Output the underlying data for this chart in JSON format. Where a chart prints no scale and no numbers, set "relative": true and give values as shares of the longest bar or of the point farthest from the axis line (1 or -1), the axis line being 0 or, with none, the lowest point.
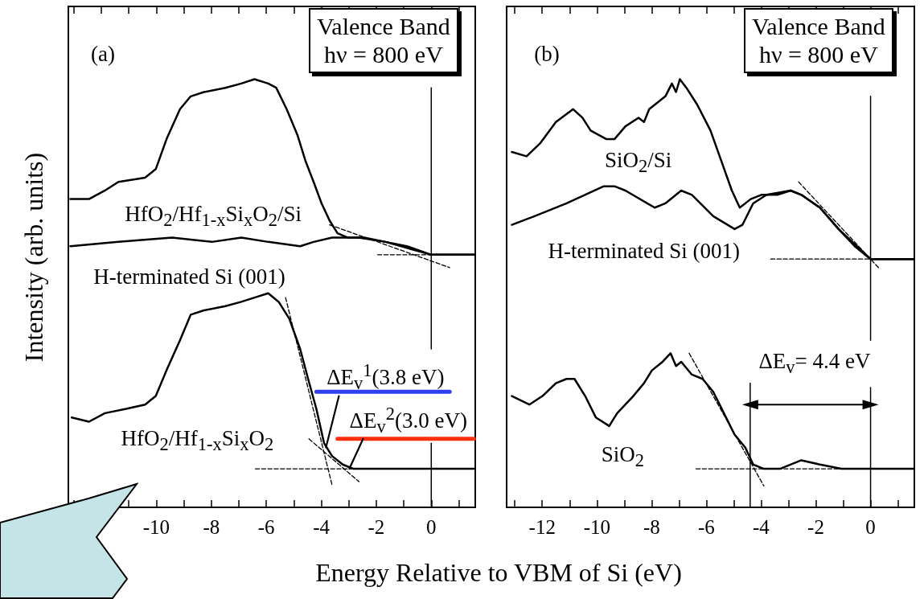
{
  "chart_data": [
    {
      "type": "line",
      "relative": true,
      "xlabel": "Energy Relative to VBM of Si (eV)",
      "ylabel": "Intensity (arb. units)",
      "xlim": [
        -13.2,
        1.6
      ],
      "xticks": [
        {
          "value": -13,
          "label": null
        },
        {
          "value": -12,
          "label": null
        },
        {
          "value": -11,
          "label": null
        },
        -10,
        {
          "value": -9,
          "label": null
        },
        -8,
        {
          "value": -7,
          "label": null
        },
        -6,
        {
          "value": -5,
          "label": null
        },
        -4,
        {
          "value": -3,
          "label": null
        },
        -2,
        {
          "value": -1,
          "label": null
        },
        0,
        {
          "value": 1,
          "label": null
        }
      ],
      "tick_labels": "x",
      "grid": false,
      "marker": "none",
      "line_style": "solid",
      "annotations": [
        "(a)",
        "Valence Band\nhν = 800 eV",
        {
          "text": "ΔE$_{v}$$^{1}$(3.8 eV)",
          "x": -3.8,
          "y": 0.14
        },
        {
          "text": "ΔE$_{v}$$^{2}$(3.0 eV)",
          "x": -3.0,
          "y": 0.09
        }
      ],
      "series": [
        {
          "name": "HfO$_{2}$/Hf$_{1-x}$Si$_{x}$O$_{2}$/Si",
          "color": "#000000",
          "x": [
            -13.13,
            -12.45,
            -11.87,
            -11.38,
            -10.41,
            -10.02,
            -9.63,
            -9.14,
            -8.75,
            -8.27,
            -7.49,
            -6.91,
            -6.43,
            -5.93,
            -5.64,
            -5.26,
            -4.87,
            -4.58,
            -4.28,
            -3.99,
            -3.7,
            -3.41,
            -3.03,
            -2.44,
            -1.66,
            -0.89,
            0,
            0.67,
            1.55
          ],
          "values": [
            0.72,
            0.72,
            0.74,
            0.76,
            0.77,
            0.79,
            0.86,
            0.93,
            0.96,
            0.97,
            0.98,
            0.99,
            1.0,
            0.99,
            0.98,
            0.93,
            0.87,
            0.81,
            0.76,
            0.71,
            0.67,
            0.64,
            0.63,
            0.63,
            0.62,
            0.61,
            0.59,
            0.59,
            0.59
          ]
        },
        {
          "name": "H-terminated Si (001)",
          "color": "#000000",
          "x": [
            -13.13,
            -11.38,
            -9.43,
            -7.98,
            -6.91,
            -5.93,
            -4.77,
            -4.28,
            -3.61,
            -2.64,
            -1.66,
            0,
            1.55
          ],
          "values": [
            0.61,
            0.62,
            0.63,
            0.62,
            0.63,
            0.62,
            0.61,
            0.62,
            0.63,
            0.63,
            0.62,
            0.59,
            0.59
          ]
        },
        {
          "name": "HfO$_{2}$/Hf$_{1-x}$Si$_{x}$O$_{2}$",
          "color": "#000000",
          "x": [
            -13.08,
            -12.45,
            -11.87,
            -11.1,
            -10.41,
            -10.02,
            -9.63,
            -9.14,
            -8.75,
            -8.27,
            -7.49,
            -6.91,
            -6.43,
            -5.93,
            -5.55,
            -5.16,
            -4.77,
            -4.48,
            -4.18,
            -3.9,
            -3.61,
            -3.22,
            -2.83,
            -1.66,
            0,
            1.55
          ],
          "values": [
            0.21,
            0.2,
            0.22,
            0.23,
            0.24,
            0.26,
            0.32,
            0.39,
            0.45,
            0.46,
            0.47,
            0.48,
            0.49,
            0.5,
            0.48,
            0.44,
            0.37,
            0.3,
            0.23,
            0.15,
            0.12,
            0.1,
            0.09,
            0.09,
            0.09,
            0.09
          ]
        },
        {
          "type": "line",
          "color": "#000000",
          "line_style": "dashed",
          "x": [
            -3.7,
            0.67
          ],
          "values": [
            0.66,
            0.56
          ]
        },
        {
          "type": "line",
          "color": "#000000",
          "line_style": "dashed",
          "x": [
            -1.95,
            0
          ],
          "values": [
            0.59,
            0.59
          ]
        },
        {
          "type": "line",
          "color": "#000000",
          "line_style": "dashed",
          "x": [
            -5.3,
            -3.6
          ],
          "values": [
            0.49,
            0.05
          ]
        },
        {
          "type": "line",
          "color": "#000000",
          "line_style": "dashed",
          "x": [
            -4.45,
            -2.63
          ],
          "values": [
            0.16,
            0.06
          ]
        },
        {
          "type": "line",
          "color": "#000000",
          "line_style": "dashed",
          "x": [
            -6.4,
            -0.4
          ],
          "values": [
            0.09,
            0.09
          ]
        },
        {
          "type": "line",
          "color": "#000000",
          "x": [
            0,
            0
          ],
          "values": [
            0.98,
            0.37
          ]
        },
        {
          "type": "line",
          "color": "#000000",
          "x": [
            0,
            0
          ],
          "values": [
            0.15,
            0
          ]
        },
        {
          "type": "line",
          "color": "#2f3ff2",
          "x": [
            -4.18,
            0.67
          ],
          "values": [
            0.27,
            0.27
          ]
        },
        {
          "type": "line",
          "color": "#ff3010",
          "x": [
            -3.41,
            1.55
          ],
          "values": [
            0.16,
            0.16
          ]
        },
        {
          "type": "line",
          "color": "#000000",
          "x": [
            -3.36,
            -3.83
          ],
          "values": [
            0.26,
            0.14
          ]
        },
        {
          "type": "line",
          "color": "#000000",
          "x": [
            -2.48,
            -2.98
          ],
          "values": [
            0.16,
            0.09
          ]
        }
      ]
    },
    {
      "type": "line",
      "relative": true,
      "xlim": [
        -13.3,
        1.6
      ],
      "xticks": [
        {
          "value": -13,
          "label": null
        },
        -12,
        {
          "value": -11,
          "label": null
        },
        -10,
        {
          "value": -9,
          "label": null
        },
        -8,
        {
          "value": -7,
          "label": null
        },
        -6,
        {
          "value": -5,
          "label": null
        },
        -4,
        {
          "value": -3,
          "label": null
        },
        -2,
        {
          "value": -1,
          "label": null
        },
        0,
        {
          "value": 1,
          "label": null
        }
      ],
      "tick_labels": "x",
      "grid": false,
      "marker": "none",
      "line_style": "solid",
      "annotations": [
        "(b)",
        "Valence Band\nhν = 800 eV",
        "ΔE$_{v}$= 4.4 eV"
      ],
      "series": [
        {
          "name": "SiO$_{2}$/Si",
          "color": "#000000",
          "x": [
            -13.11,
            -12.57,
            -12.08,
            -11.5,
            -10.87,
            -10.53,
            -10.23,
            -9.65,
            -9.36,
            -8.96,
            -8.48,
            -8.28,
            -8.09,
            -7.5,
            -7.26,
            -7.11,
            -6.97,
            -6.73,
            -6.33,
            -5.85,
            -5.46,
            -5.07,
            -4.78,
            -4.38,
            -3.99,
            -3.41,
            -2.92,
            -2.53,
            -1.85,
            -1.17,
            -0.58,
            0,
            0.58,
            1.56
          ],
          "values": [
            0.83,
            0.82,
            0.85,
            0.9,
            0.93,
            0.91,
            0.88,
            0.86,
            0.86,
            0.89,
            0.91,
            0.9,
            0.93,
            0.96,
            0.99,
            0.97,
            1.0,
            0.98,
            0.94,
            0.88,
            0.81,
            0.74,
            0.7,
            0.72,
            0.73,
            0.73,
            0.74,
            0.73,
            0.7,
            0.65,
            0.61,
            0.58,
            0.58,
            0.58
          ]
        },
        {
          "name": "H-terminated Si (001)",
          "color": "#000000",
          "x": [
            -13.11,
            -12.28,
            -11.11,
            -9.75,
            -9.36,
            -8.96,
            -7.89,
            -7.5,
            -6.92,
            -6.53,
            -5.75,
            -4.97,
            -4.68,
            -4.29,
            -3.8,
            -2.92,
            -2.53,
            -1.85,
            -1.17,
            0,
            1.56
          ],
          "values": [
            0.66,
            0.68,
            0.71,
            0.75,
            0.75,
            0.74,
            0.7,
            0.71,
            0.74,
            0.73,
            0.68,
            0.65,
            0.66,
            0.71,
            0.73,
            0.74,
            0.73,
            0.7,
            0.65,
            0.58,
            0.58
          ]
        },
        {
          "name": "SiO$_{2}$",
          "color": "#000000",
          "x": [
            -13.11,
            -12.47,
            -11.99,
            -11.5,
            -11.11,
            -10.82,
            -10.43,
            -10.04,
            -9.55,
            -9.26,
            -8.67,
            -8.28,
            -7.99,
            -7.6,
            -7.31,
            -7.11,
            -6.92,
            -6.53,
            -6.14,
            -5.75,
            -5.36,
            -4.97,
            -4.58,
            -4.29,
            -3.9,
            -3.31,
            -2.53,
            -1.85,
            -1.07,
            0,
            1.56
          ],
          "values": [
            0.26,
            0.24,
            0.26,
            0.29,
            0.3,
            0.3,
            0.26,
            0.21,
            0.19,
            0.22,
            0.26,
            0.29,
            0.32,
            0.34,
            0.36,
            0.33,
            0.34,
            0.31,
            0.3,
            0.27,
            0.22,
            0.17,
            0.14,
            0.1,
            0.09,
            0.09,
            0.11,
            0.1,
            0.09,
            0.09,
            0.09
          ]
        },
        {
          "type": "line",
          "color": "#000000",
          "line_style": "dashed",
          "x": [
            -2.63,
            0.29
          ],
          "values": [
            0.76,
            0.56
          ]
        },
        {
          "type": "line",
          "color": "#000000",
          "line_style": "dashed",
          "x": [
            -3.65,
            0
          ],
          "values": [
            0.58,
            0.58
          ]
        },
        {
          "type": "line",
          "color": "#000000",
          "line_style": "dashed",
          "x": [
            -6.63,
            -3.9
          ],
          "values": [
            0.36,
            0.05
          ]
        },
        {
          "type": "line",
          "color": "#000000",
          "line_style": "dashed",
          "x": [
            -6.38,
            0
          ],
          "values": [
            0.09,
            0.09
          ]
        },
        {
          "type": "line",
          "color": "#000000",
          "x": [
            0,
            0
          ],
          "values": [
            0.96,
            0.39
          ]
        },
        {
          "type": "line",
          "color": "#000000",
          "x": [
            0,
            0
          ],
          "values": [
            0.28,
            0
          ]
        },
        {
          "type": "line",
          "color": "#000000",
          "x": [
            -4.4,
            -4.4
          ],
          "values": [
            0.29,
            0
          ]
        },
        {
          "type": "line",
          "color": "#000000",
          "marker": "triangle",
          "x": [
            -4.4,
            0
          ],
          "values": [
            0.24,
            0.24
          ]
        }
      ]
    }
  ]
}
